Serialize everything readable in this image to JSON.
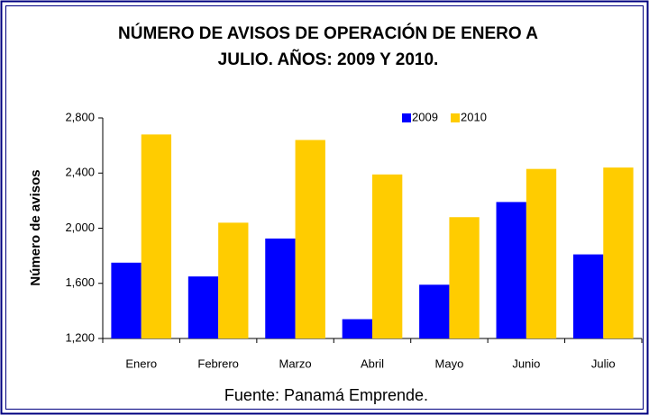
{
  "chart_data": {
    "type": "bar",
    "title": [
      "NÚMERO DE AVISOS DE OPERACIÓN DE  ENERO A",
      "JULIO. AÑOS: 2009 Y 2010."
    ],
    "y_label": "Número de avisos",
    "source": "Fuente: Panamá Emprende.",
    "categories": [
      "Enero",
      "Febrero",
      "Marzo",
      "Abril",
      "Mayo",
      "Junio",
      "Julio"
    ],
    "series": [
      {
        "name": "2009",
        "color": "#0000ff",
        "values": [
          1750,
          1650,
          1925,
          1340,
          1590,
          2190,
          1810
        ]
      },
      {
        "name": "2010",
        "color": "#ffcc00",
        "values": [
          2680,
          2040,
          2640,
          2390,
          2080,
          2430,
          2440
        ]
      }
    ],
    "ylim": [
      1200,
      2800
    ],
    "yticks": [
      {
        "value": 1200,
        "label": "1,200"
      },
      {
        "value": 1600,
        "label": "1,600"
      },
      {
        "value": 2000,
        "label": "2,000"
      },
      {
        "value": 2400,
        "label": "2,400"
      },
      {
        "value": 2800,
        "label": "2,800"
      }
    ],
    "legend": "top-right"
  }
}
